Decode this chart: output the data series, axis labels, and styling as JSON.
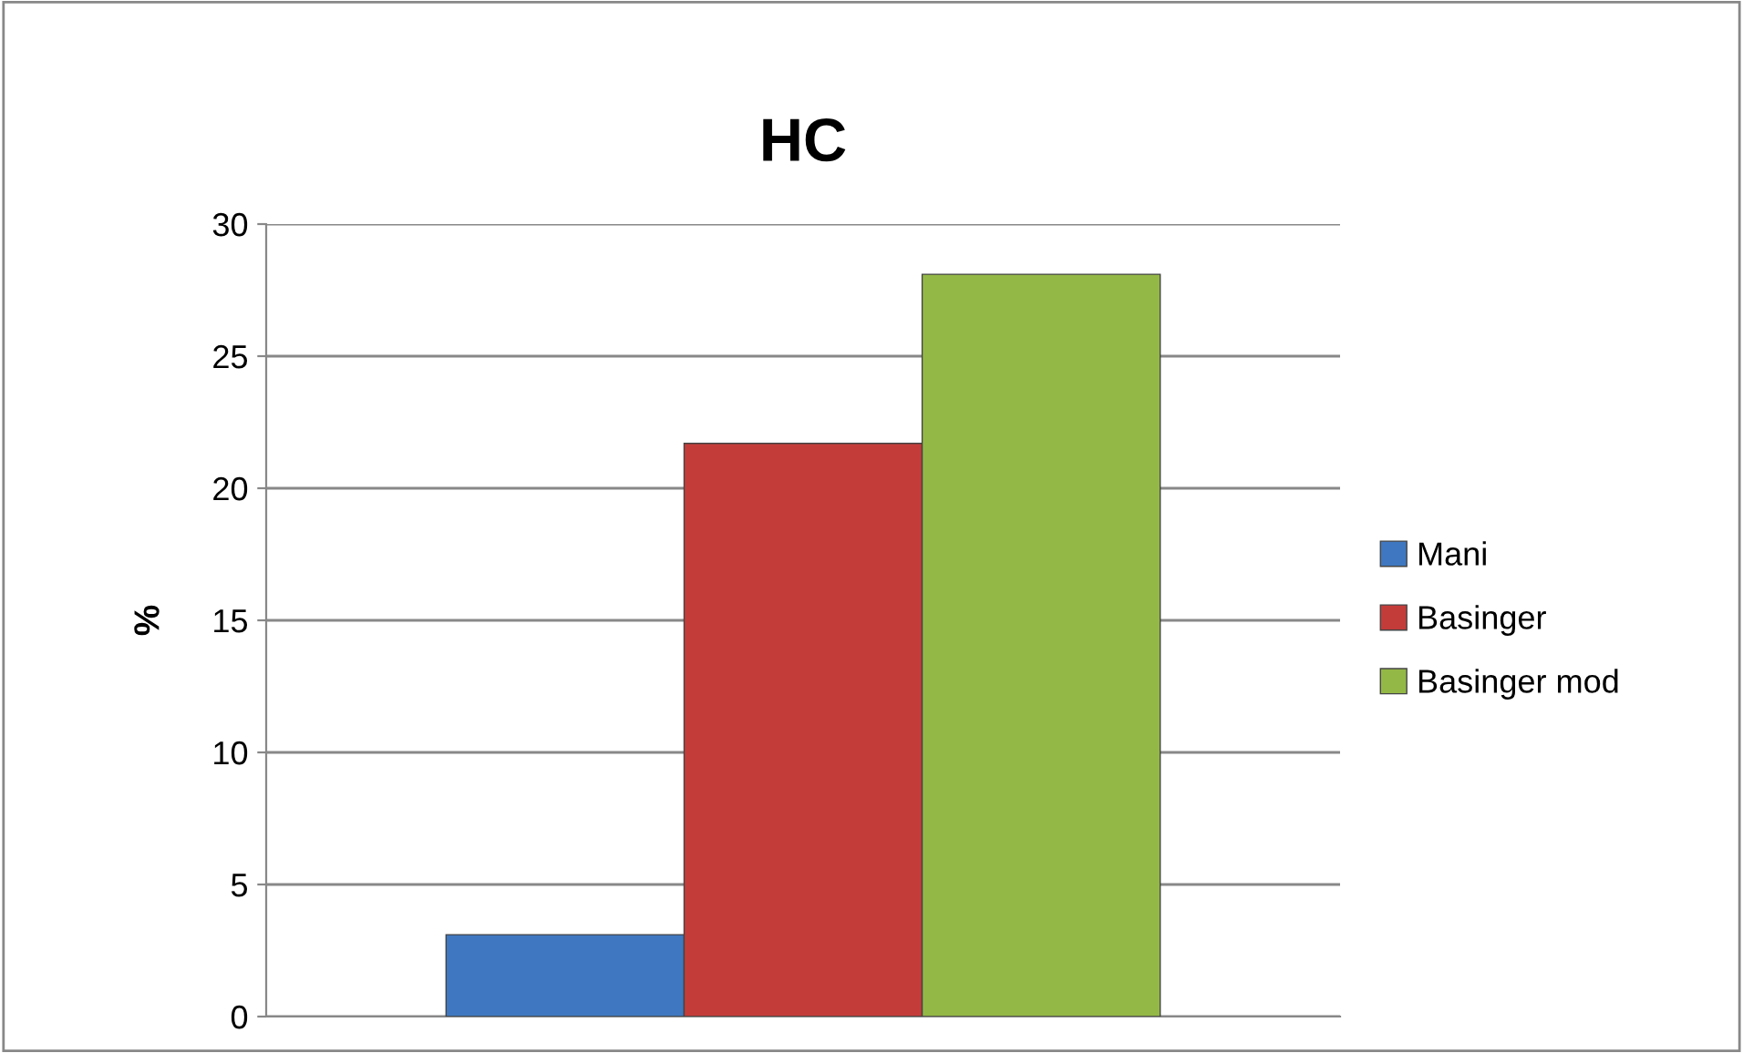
{
  "chart_data": {
    "type": "bar",
    "title": "HC",
    "ylabel": "%",
    "categories": [
      null
    ],
    "series": [
      {
        "name": "Mani",
        "color": "#3f78c0",
        "values": [
          3.1
        ]
      },
      {
        "name": "Basinger",
        "color": "#c43c3a",
        "values": [
          21.7
        ]
      },
      {
        "name": "Basinger mod",
        "color": "#94b846",
        "values": [
          28.1
        ]
      }
    ],
    "ylim": [
      0,
      30
    ],
    "yticks": [
      0,
      5,
      10,
      15,
      20,
      25,
      30
    ],
    "grid": "y",
    "legend": "right"
  }
}
